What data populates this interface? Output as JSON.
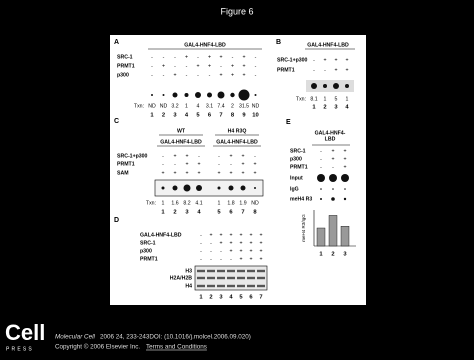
{
  "header": {
    "title": "Figure 6"
  },
  "figure": {
    "panel_a": {
      "label": "A",
      "construct": "GAL4-HNF4-LBD",
      "rows": [
        {
          "name": "SRC-1",
          "signs": [
            "-",
            "-",
            "-",
            "+",
            "-",
            "+",
            "+",
            "-",
            "+",
            "-"
          ]
        },
        {
          "name": "PRMT1",
          "signs": [
            "-",
            "+",
            "-",
            "-",
            "+",
            "+",
            "-",
            "+",
            "+",
            "-"
          ]
        },
        {
          "name": "p300",
          "signs": [
            "-",
            "-",
            "+",
            "-",
            "-",
            "-",
            "+",
            "+",
            "+",
            "-"
          ]
        }
      ],
      "txn_label": "Txn:",
      "txn": [
        "ND",
        "ND",
        "3.2",
        "1",
        "4",
        "3.1",
        "7.4",
        "2",
        "31.5",
        "ND"
      ],
      "lanes": [
        "1",
        "2",
        "3",
        "4",
        "5",
        "6",
        "7",
        "8",
        "9",
        "10"
      ]
    },
    "panel_b": {
      "label": "B",
      "construct": "GAL4-HNF4-LBD",
      "rows": [
        {
          "name": "SRC-1+p300",
          "signs": [
            "-",
            "+",
            "+",
            "+"
          ]
        },
        {
          "name": "PRMT1",
          "signs": [
            "-",
            "-",
            "+",
            "+"
          ]
        }
      ],
      "txn_label": "Txn:",
      "txn": [
        "8.1",
        "1",
        "5",
        "1"
      ],
      "lanes": [
        "1",
        "2",
        "3",
        "4"
      ]
    },
    "panel_c": {
      "label": "C",
      "groups": [
        {
          "name": "WT",
          "construct": "GAL4-HNF4-LBD"
        },
        {
          "name": "H4 R3Q",
          "construct": "GAL4-HNF4-LBD"
        }
      ],
      "rows": [
        {
          "name": "SRC-1+p300",
          "signs": [
            "-",
            "+",
            "+",
            "-",
            "-",
            "+",
            "+",
            "-"
          ]
        },
        {
          "name": "PRMT1",
          "signs": [
            "-",
            "-",
            "+",
            "+",
            "-",
            "-",
            "+",
            "+"
          ]
        },
        {
          "name": "SAM",
          "signs": [
            "+",
            "+",
            "+",
            "+",
            "+",
            "+",
            "+",
            "+"
          ]
        }
      ],
      "txn_label": "Txn:",
      "txn": [
        "1",
        "1.6",
        "8.2",
        "4.1",
        "1",
        "1.8",
        "1.9",
        "ND"
      ],
      "lanes": [
        "1",
        "2",
        "3",
        "4",
        "5",
        "6",
        "7",
        "8"
      ]
    },
    "panel_d": {
      "label": "D",
      "rows": [
        {
          "name": "GAL4-HNF4-LBD",
          "signs": [
            "-",
            "+",
            "+",
            "+",
            "+",
            "+",
            "+"
          ]
        },
        {
          "name": "SRC-1",
          "signs": [
            "-",
            "-",
            "+",
            "+",
            "+",
            "+",
            "+"
          ]
        },
        {
          "name": "p300",
          "signs": [
            "-",
            "-",
            "-",
            "+",
            "+",
            "+",
            "+"
          ]
        },
        {
          "name": "PRMT1",
          "signs": [
            "-",
            "-",
            "-",
            "-",
            "+",
            "+",
            "+"
          ]
        }
      ],
      "bands": [
        "H3",
        "H2A/H2B",
        "H4"
      ],
      "lanes": [
        "1",
        "2",
        "3",
        "4",
        "5",
        "6",
        "7"
      ]
    },
    "panel_e": {
      "label": "E",
      "construct_lines": [
        "GAL4-HNF4-",
        "LBD"
      ],
      "rows": [
        {
          "name": "SRC-1",
          "signs": [
            "-",
            "+",
            "+"
          ]
        },
        {
          "name": "p300",
          "signs": [
            "-",
            "+",
            "+"
          ]
        },
        {
          "name": "PRMT1",
          "signs": [
            "-",
            "-",
            "+"
          ]
        }
      ],
      "blot_rows": [
        "Input",
        "IgG",
        "meH4 R3"
      ],
      "chart": {
        "ylabel": "meH4 R3/IgG",
        "values": [
          1,
          1.7,
          1.1
        ],
        "ylim": [
          0,
          2
        ],
        "color": "#999999"
      },
      "lanes": [
        "1",
        "2",
        "3"
      ]
    }
  },
  "footer": {
    "logo_top": "Cell",
    "logo_bottom": "PRESS",
    "journal": "Molecular Cell",
    "citation": "2006 24, 233-243DOI: (10.1016/j.molcel.2006.09.020)",
    "copyright": "Copyright © 2006 Elsevier Inc.",
    "terms": "Terms and Conditions"
  }
}
